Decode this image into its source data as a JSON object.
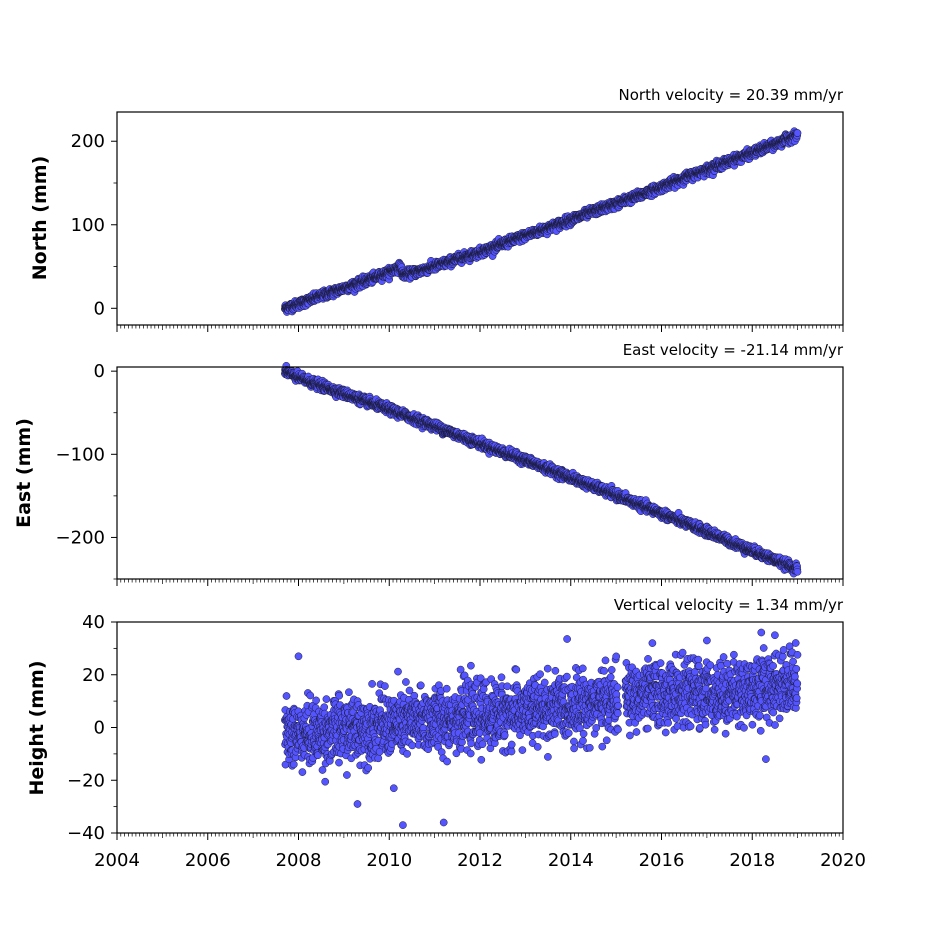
{
  "colors": {
    "marker_fill": "#5555ff",
    "marker_edge": "#1a1a3a",
    "axes": "#000000",
    "background": "#ffffff"
  },
  "chart_data": [
    {
      "type": "scatter",
      "title": "North velocity = 20.39 mm/yr",
      "xlabel": "",
      "ylabel": "North (mm)",
      "xlim": [
        2004,
        2020
      ],
      "ylim": [
        -20,
        235
      ],
      "yticks": [
        0,
        100,
        200
      ],
      "ytick_labels": [
        "0",
        "100",
        "200"
      ],
      "grid": false,
      "series": [
        {
          "x": [
            2007.7,
            2008.0,
            2008.5,
            2009.0,
            2009.5,
            2010.0,
            2010.25,
            2010.3,
            2010.5,
            2011.0,
            2011.5,
            2012.0,
            2012.5,
            2013.0,
            2013.5,
            2014.0,
            2014.5,
            2015.0,
            2015.5,
            2016.0,
            2016.5,
            2017.0,
            2017.5,
            2018.0,
            2018.5,
            2019.0
          ],
          "y": [
            0,
            5,
            15,
            24,
            33,
            43,
            50,
            40,
            42,
            50,
            59,
            67,
            77,
            87,
            96,
            106,
            116,
            125,
            135,
            145,
            156,
            166,
            176,
            186,
            196,
            208
          ],
          "noise": 2.5
        }
      ]
    },
    {
      "type": "scatter",
      "title": "East velocity = -21.14 mm/yr",
      "xlabel": "",
      "ylabel": "East (mm)",
      "xlim": [
        2004,
        2020
      ],
      "ylim": [
        -250,
        5
      ],
      "yticks": [
        0,
        -100,
        -200
      ],
      "ytick_labels": [
        "0",
        "−100",
        "−200"
      ],
      "grid": false,
      "series": [
        {
          "x": [
            2007.7,
            2008.0,
            2009.0,
            2010.0,
            2011.0,
            2012.0,
            2013.0,
            2014.0,
            2015.0,
            2016.0,
            2017.0,
            2018.0,
            2019.0
          ],
          "y": [
            0,
            -8,
            -27,
            -46,
            -66,
            -87,
            -107,
            -128,
            -149,
            -171,
            -193,
            -216,
            -238
          ],
          "noise": 2.5
        }
      ]
    },
    {
      "type": "scatter",
      "title": "Vertical velocity = 1.34 mm/yr",
      "xlabel": "",
      "ylabel": "Height (mm)",
      "xlim": [
        2004,
        2020
      ],
      "ylim": [
        -40,
        40
      ],
      "yticks": [
        -40,
        -20,
        0,
        20,
        40
      ],
      "ytick_labels": [
        "−40",
        "−20",
        "0",
        "20",
        "40"
      ],
      "xticks": [
        2004,
        2006,
        2008,
        2010,
        2012,
        2014,
        2016,
        2018,
        2020
      ],
      "xtick_labels": [
        "2004",
        "2006",
        "2008",
        "2010",
        "2012",
        "2014",
        "2016",
        "2018",
        "2020"
      ],
      "grid": false,
      "series": [
        {
          "x": [
            2007.7,
            2008.5,
            2009.5,
            2010.5,
            2011.5,
            2012.5,
            2013.5,
            2014.5,
            2015.5,
            2016.5,
            2017.5,
            2018.5,
            2019.0
          ],
          "y": [
            -3,
            -2,
            0,
            2,
            4,
            5,
            7,
            9,
            12,
            13,
            13,
            16,
            18
          ],
          "noise": 6,
          "gap": [
            2015.05,
            2015.2
          ]
        }
      ],
      "outliers": [
        {
          "x": 2008.0,
          "y": 27
        },
        {
          "x": 2009.3,
          "y": -29
        },
        {
          "x": 2010.3,
          "y": -37
        },
        {
          "x": 2011.2,
          "y": -36
        },
        {
          "x": 2010.1,
          "y": -23
        },
        {
          "x": 2018.3,
          "y": -12
        },
        {
          "x": 2018.2,
          "y": 36
        },
        {
          "x": 2017.0,
          "y": 33
        },
        {
          "x": 2015.8,
          "y": 32
        },
        {
          "x": 2018.5,
          "y": 35
        }
      ]
    }
  ]
}
